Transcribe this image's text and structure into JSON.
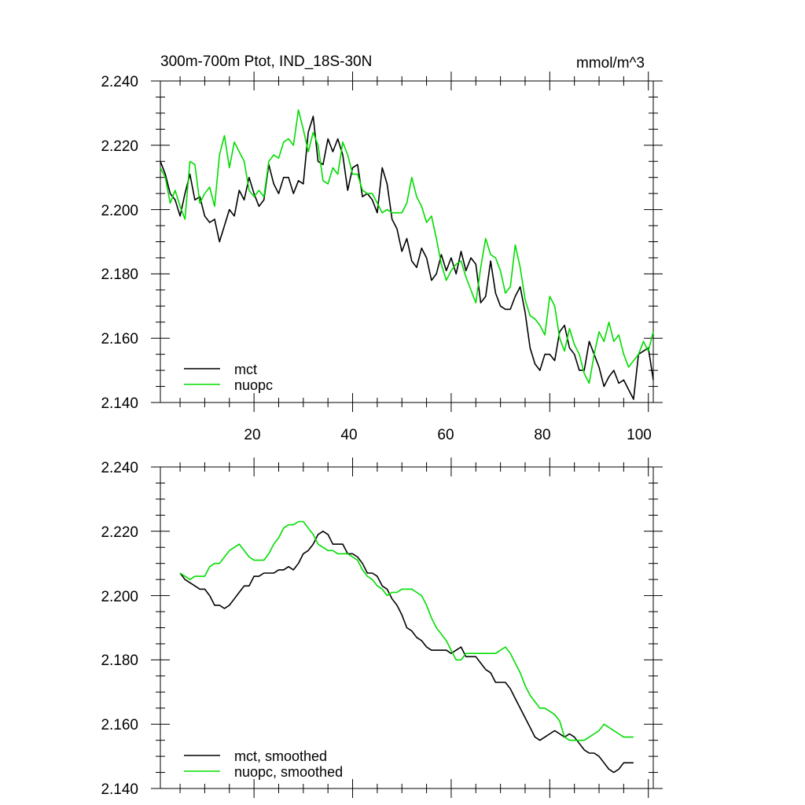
{
  "chart_data": [
    {
      "type": "line",
      "title": "300m-700m Ptot, IND_18S-30N",
      "units": "mmol/m^3",
      "xlim": [
        1,
        101
      ],
      "ylim": [
        2.14,
        2.24
      ],
      "xticks": [
        20,
        40,
        60,
        80,
        100
      ],
      "xticklabels": [
        "20",
        "40",
        "60",
        "80",
        "100"
      ],
      "yticks": [
        2.14,
        2.16,
        2.18,
        2.2,
        2.22,
        2.24
      ],
      "yticklabels": [
        "2.140",
        "2.160",
        "2.180",
        "2.200",
        "2.220",
        "2.240"
      ],
      "legend_position": "bottom-left",
      "series": [
        {
          "name": "mct",
          "color": "#000000",
          "x": [
            1,
            2,
            3,
            4,
            5,
            6,
            7,
            8,
            9,
            10,
            11,
            12,
            13,
            14,
            15,
            16,
            17,
            18,
            19,
            20,
            21,
            22,
            23,
            24,
            25,
            26,
            27,
            28,
            29,
            30,
            31,
            32,
            33,
            34,
            35,
            36,
            37,
            38,
            39,
            40,
            41,
            42,
            43,
            44,
            45,
            46,
            47,
            48,
            49,
            50,
            51,
            52,
            53,
            54,
            55,
            56,
            57,
            58,
            59,
            60,
            61,
            62,
            63,
            64,
            65,
            66,
            67,
            68,
            69,
            70,
            71,
            72,
            73,
            74,
            75,
            76,
            77,
            78,
            79,
            80,
            81,
            82,
            83,
            84,
            85,
            86,
            87,
            88,
            89,
            90,
            91,
            92,
            93,
            94,
            95,
            96,
            97,
            98,
            99,
            100,
            101
          ],
          "values": [
            2.215,
            2.211,
            2.205,
            2.203,
            2.198,
            2.205,
            2.211,
            2.203,
            2.204,
            2.198,
            2.196,
            2.197,
            2.19,
            2.195,
            2.2,
            2.198,
            2.206,
            2.203,
            2.21,
            2.205,
            2.201,
            2.203,
            2.214,
            2.208,
            2.205,
            2.21,
            2.21,
            2.205,
            2.209,
            2.208,
            2.224,
            2.229,
            2.215,
            2.214,
            2.222,
            2.218,
            2.222,
            2.217,
            2.206,
            2.213,
            2.214,
            2.204,
            2.205,
            2.203,
            2.199,
            2.213,
            2.208,
            2.197,
            2.194,
            2.187,
            2.191,
            2.184,
            2.182,
            2.188,
            2.185,
            2.178,
            2.18,
            2.186,
            2.181,
            2.185,
            2.18,
            2.187,
            2.181,
            2.185,
            2.183,
            2.171,
            2.173,
            2.184,
            2.174,
            2.17,
            2.169,
            2.169,
            2.173,
            2.176,
            2.168,
            2.157,
            2.152,
            2.15,
            2.155,
            2.155,
            2.153,
            2.162,
            2.164,
            2.157,
            2.155,
            2.15,
            2.15,
            2.159,
            2.155,
            2.151,
            2.145,
            2.148,
            2.15,
            2.146,
            2.147,
            2.144,
            2.141,
            2.155,
            2.156,
            2.157,
            2.147
          ]
        },
        {
          "name": "nuopc",
          "color": "#00dd00",
          "x": [
            1,
            2,
            3,
            4,
            5,
            6,
            7,
            8,
            9,
            10,
            11,
            12,
            13,
            14,
            15,
            16,
            17,
            18,
            19,
            20,
            21,
            22,
            23,
            24,
            25,
            26,
            27,
            28,
            29,
            30,
            31,
            32,
            33,
            34,
            35,
            36,
            37,
            38,
            39,
            40,
            41,
            42,
            43,
            44,
            45,
            46,
            47,
            48,
            49,
            50,
            51,
            52,
            53,
            54,
            55,
            56,
            57,
            58,
            59,
            60,
            61,
            62,
            63,
            64,
            65,
            66,
            67,
            68,
            69,
            70,
            71,
            72,
            73,
            74,
            75,
            76,
            77,
            78,
            79,
            80,
            81,
            82,
            83,
            84,
            85,
            86,
            87,
            88,
            89,
            90,
            91,
            92,
            93,
            94,
            95,
            96,
            97,
            98,
            99,
            100,
            101
          ],
          "values": [
            2.213,
            2.21,
            2.202,
            2.206,
            2.201,
            2.197,
            2.215,
            2.214,
            2.202,
            2.205,
            2.207,
            2.201,
            2.217,
            2.223,
            2.213,
            2.221,
            2.218,
            2.215,
            2.206,
            2.204,
            2.206,
            2.204,
            2.215,
            2.217,
            2.216,
            2.221,
            2.222,
            2.22,
            2.231,
            2.225,
            2.218,
            2.224,
            2.22,
            2.209,
            2.208,
            2.213,
            2.211,
            2.221,
            2.217,
            2.211,
            2.211,
            2.206,
            2.205,
            2.205,
            2.202,
            2.199,
            2.2,
            2.199,
            2.199,
            2.199,
            2.202,
            2.21,
            2.204,
            2.201,
            2.196,
            2.198,
            2.191,
            2.183,
            2.178,
            2.181,
            2.183,
            2.184,
            2.179,
            2.175,
            2.171,
            2.182,
            2.191,
            2.186,
            2.185,
            2.181,
            2.174,
            2.176,
            2.189,
            2.182,
            2.172,
            2.167,
            2.166,
            2.164,
            2.161,
            2.173,
            2.17,
            2.16,
            2.156,
            2.163,
            2.158,
            2.155,
            2.149,
            2.146,
            2.155,
            2.162,
            2.159,
            2.165,
            2.159,
            2.161,
            2.155,
            2.151,
            2.153,
            2.155,
            2.159,
            2.156,
            2.162
          ]
        }
      ]
    },
    {
      "type": "line",
      "title": "",
      "xlim": [
        1,
        101
      ],
      "ylim": [
        2.14,
        2.24
      ],
      "xticks": [
        20,
        40,
        60,
        80,
        100
      ],
      "yticks": [
        2.14,
        2.16,
        2.18,
        2.2,
        2.22,
        2.24
      ],
      "yticklabels": [
        "2.140",
        "2.160",
        "2.180",
        "2.200",
        "2.220",
        "2.240"
      ],
      "legend_position": "bottom-left",
      "series": [
        {
          "name": "mct, smoothed",
          "color": "#000000",
          "x": [
            5,
            6,
            7,
            8,
            9,
            10,
            11,
            12,
            13,
            14,
            15,
            16,
            17,
            18,
            19,
            20,
            21,
            22,
            23,
            24,
            25,
            26,
            27,
            28,
            29,
            30,
            31,
            32,
            33,
            34,
            35,
            36,
            37,
            38,
            39,
            40,
            41,
            42,
            43,
            44,
            45,
            46,
            47,
            48,
            49,
            50,
            51,
            52,
            53,
            54,
            55,
            56,
            57,
            58,
            59,
            60,
            61,
            62,
            63,
            64,
            65,
            66,
            67,
            68,
            69,
            70,
            71,
            72,
            73,
            74,
            75,
            76,
            77,
            78,
            79,
            80,
            81,
            82,
            83,
            84,
            85,
            86,
            87,
            88,
            89,
            90,
            91,
            92,
            93,
            94,
            95,
            96,
            97
          ],
          "values": [
            2.207,
            2.205,
            2.204,
            2.203,
            2.202,
            2.202,
            2.2,
            2.197,
            2.197,
            2.196,
            2.197,
            2.199,
            2.201,
            2.203,
            2.203,
            2.206,
            2.206,
            2.207,
            2.207,
            2.207,
            2.208,
            2.208,
            2.209,
            2.208,
            2.21,
            2.213,
            2.214,
            2.216,
            2.219,
            2.22,
            2.219,
            2.216,
            2.216,
            2.216,
            2.213,
            2.213,
            2.212,
            2.21,
            2.207,
            2.207,
            2.206,
            2.203,
            2.202,
            2.199,
            2.197,
            2.194,
            2.19,
            2.189,
            2.187,
            2.186,
            2.184,
            2.183,
            2.183,
            2.183,
            2.183,
            2.182,
            2.183,
            2.184,
            2.181,
            2.181,
            2.181,
            2.179,
            2.177,
            2.176,
            2.173,
            2.173,
            2.173,
            2.171,
            2.168,
            2.165,
            2.162,
            2.159,
            2.156,
            2.155,
            2.156,
            2.157,
            2.158,
            2.157,
            2.156,
            2.157,
            2.156,
            2.154,
            2.152,
            2.151,
            2.151,
            2.15,
            2.148,
            2.146,
            2.145,
            2.146,
            2.148,
            2.148,
            2.148
          ]
        },
        {
          "name": "nuopc, smoothed",
          "color": "#00dd00",
          "x": [
            5,
            6,
            7,
            8,
            9,
            10,
            11,
            12,
            13,
            14,
            15,
            16,
            17,
            18,
            19,
            20,
            21,
            22,
            23,
            24,
            25,
            26,
            27,
            28,
            29,
            30,
            31,
            32,
            33,
            34,
            35,
            36,
            37,
            38,
            39,
            40,
            41,
            42,
            43,
            44,
            45,
            46,
            47,
            48,
            49,
            50,
            51,
            52,
            53,
            54,
            55,
            56,
            57,
            58,
            59,
            60,
            61,
            62,
            63,
            64,
            65,
            66,
            67,
            68,
            69,
            70,
            71,
            72,
            73,
            74,
            75,
            76,
            77,
            78,
            79,
            80,
            81,
            82,
            83,
            84,
            85,
            86,
            87,
            88,
            89,
            90,
            91,
            92,
            93,
            94,
            95,
            96,
            97
          ],
          "values": [
            2.207,
            2.206,
            2.205,
            2.206,
            2.206,
            2.206,
            2.209,
            2.21,
            2.21,
            2.212,
            2.214,
            2.215,
            2.216,
            2.214,
            2.212,
            2.211,
            2.211,
            2.211,
            2.213,
            2.216,
            2.218,
            2.221,
            2.222,
            2.222,
            2.223,
            2.223,
            2.221,
            2.219,
            2.216,
            2.215,
            2.214,
            2.214,
            2.213,
            2.213,
            2.213,
            2.212,
            2.211,
            2.208,
            2.206,
            2.205,
            2.203,
            2.202,
            2.2,
            2.201,
            2.201,
            2.202,
            2.202,
            2.202,
            2.201,
            2.2,
            2.197,
            2.193,
            2.19,
            2.188,
            2.186,
            2.183,
            2.18,
            2.18,
            2.182,
            2.182,
            2.182,
            2.182,
            2.182,
            2.182,
            2.182,
            2.183,
            2.184,
            2.182,
            2.179,
            2.176,
            2.172,
            2.169,
            2.167,
            2.165,
            2.165,
            2.164,
            2.163,
            2.161,
            2.156,
            2.155,
            2.155,
            2.155,
            2.155,
            2.156,
            2.157,
            2.158,
            2.16,
            2.159,
            2.158,
            2.157,
            2.156,
            2.156,
            2.156
          ]
        }
      ]
    }
  ]
}
